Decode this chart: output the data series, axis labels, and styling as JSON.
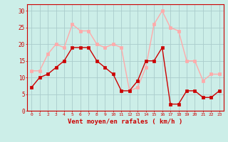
{
  "hours": [
    0,
    1,
    2,
    3,
    4,
    5,
    6,
    7,
    8,
    9,
    10,
    11,
    12,
    13,
    14,
    15,
    16,
    17,
    18,
    19,
    20,
    21,
    22,
    23
  ],
  "wind_mean": [
    7,
    10,
    11,
    13,
    15,
    19,
    19,
    19,
    15,
    13,
    11,
    6,
    6,
    9,
    15,
    15,
    19,
    2,
    2,
    6,
    6,
    4,
    4,
    6
  ],
  "wind_gust": [
    12,
    12,
    17,
    20,
    19,
    26,
    24,
    24,
    20,
    19,
    20,
    19,
    6,
    7,
    13,
    26,
    30,
    25,
    24,
    15,
    15,
    9,
    11,
    11
  ],
  "mean_color": "#cc0000",
  "gust_color": "#ffaaaa",
  "bg_color": "#cceee8",
  "grid_color": "#aacccc",
  "xlabel": "Vent moyen/en rafales ( km/h )",
  "yticks": [
    0,
    5,
    10,
    15,
    20,
    25,
    30
  ],
  "ylim": [
    0,
    32
  ],
  "xlim": [
    -0.5,
    23.5
  ],
  "markersize": 2.5,
  "linewidth": 1.0
}
